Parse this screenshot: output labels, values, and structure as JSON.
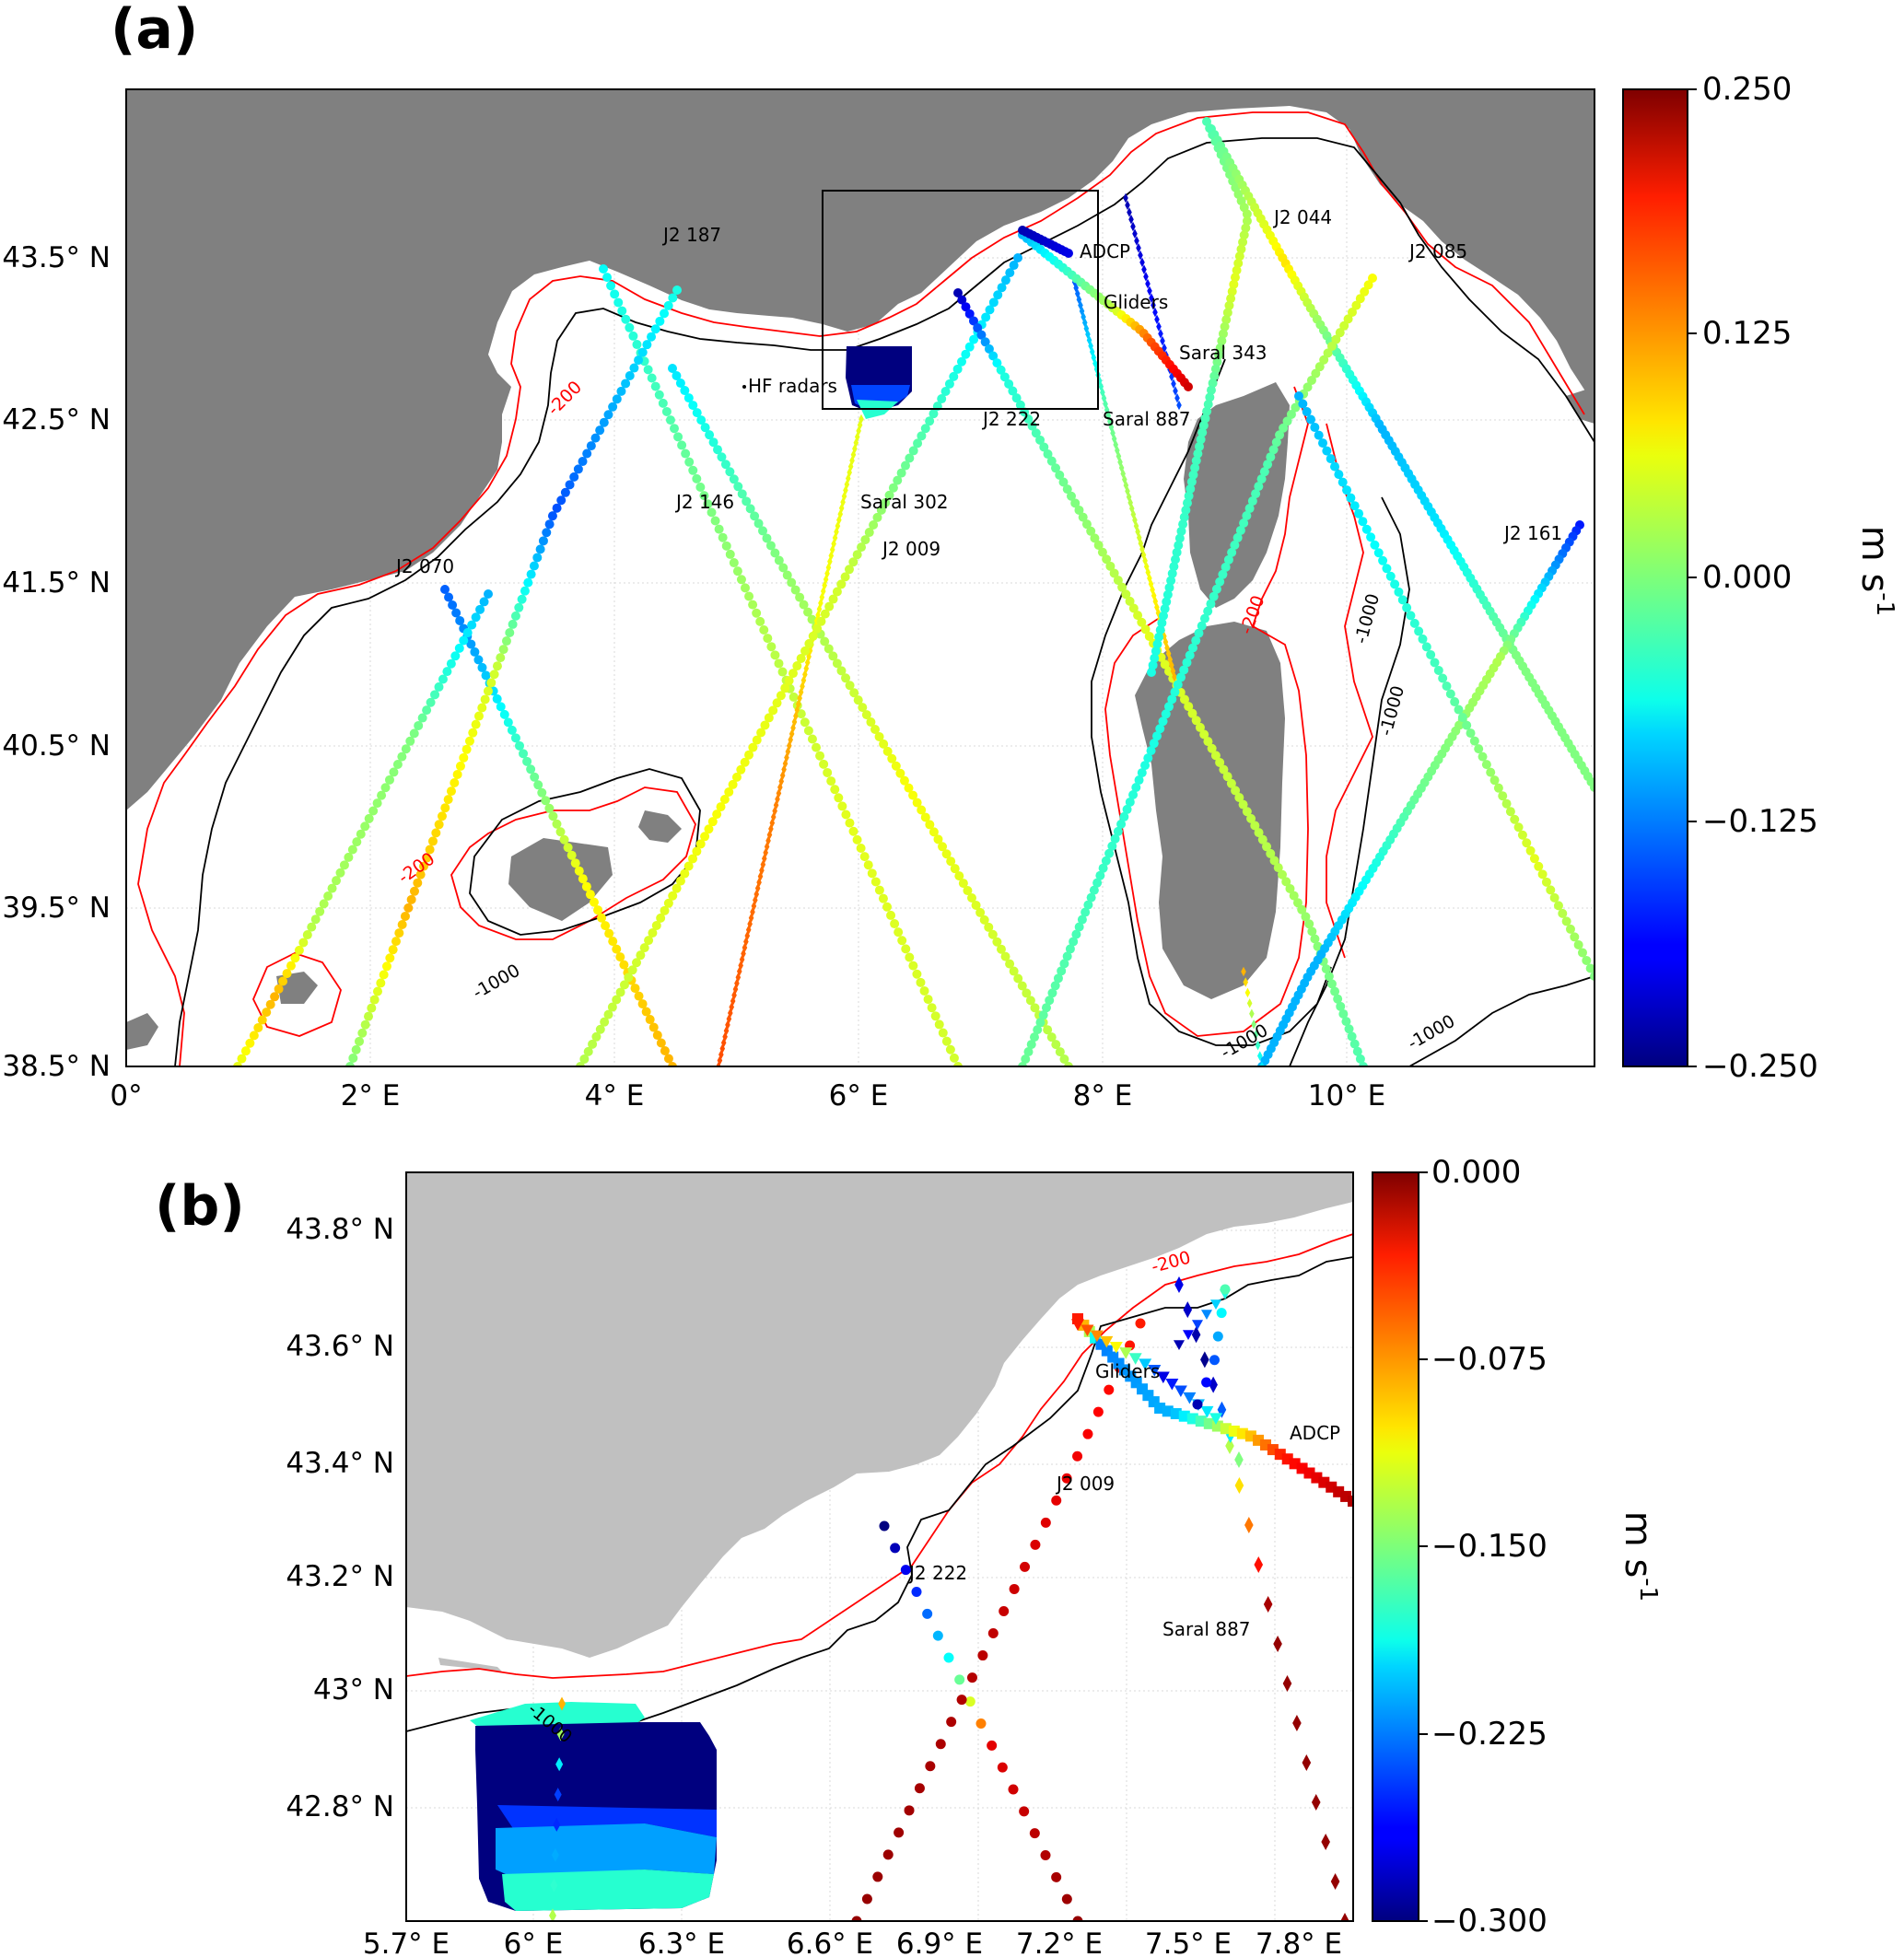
{
  "panel_a": {
    "label": "(a)",
    "lon_ticks": [
      "0°",
      "2° E",
      "4° E",
      "6° E",
      "8° E",
      "10° E"
    ],
    "lat_ticks": [
      "43.5° N",
      "42.5° N",
      "41.5° N",
      "40.5° N",
      "39.5° N",
      "38.5° N"
    ],
    "track_labels": [
      "J2 187",
      "ADCP",
      "J2 044",
      "J2 085",
      "Gliders",
      "Saral 343",
      "HF radars",
      "J2 222",
      "Saral 887",
      "J2 146",
      "Saral 302",
      "J2 009",
      "J2 161",
      "J2 070"
    ],
    "contour_labels": [
      "-200",
      "-200",
      "-200",
      "-1000",
      "-1000",
      "-1000",
      "-1000",
      "-1000"
    ],
    "colorbar": {
      "ticks": [
        "0.250",
        "0.125",
        "0.000",
        "−0.125",
        "−0.250"
      ],
      "min": -0.25,
      "max": 0.25,
      "unit": "m s",
      "unit_exp": "-1"
    }
  },
  "panel_b": {
    "label": "(b)",
    "lon_ticks": [
      "5.7° E",
      "6° E",
      "6.3° E",
      "6.6° E",
      "6.9° E",
      "7.2° E",
      "7.5° E",
      "7.8° E"
    ],
    "lat_ticks": [
      "43.8° N",
      "43.6° N",
      "43.4° N",
      "43.2° N",
      "43° N",
      "42.8° N"
    ],
    "track_labels": [
      "Gliders",
      "ADCP",
      "J2 009",
      "J2 222",
      "Saral 887"
    ],
    "contour_labels": [
      "-200",
      "-1000"
    ],
    "colorbar": {
      "ticks": [
        "0.000",
        "−0.075",
        "−0.150",
        "−0.225",
        "−0.300"
      ],
      "min": -0.3,
      "max": 0.0,
      "unit": "m s",
      "unit_exp": "-1"
    }
  },
  "colors": {
    "land_a": "#808080",
    "land_b": "#c0c0c0",
    "isobath_200": "#ff0000",
    "isobath_1000": "#000000",
    "colormap": "jet"
  }
}
